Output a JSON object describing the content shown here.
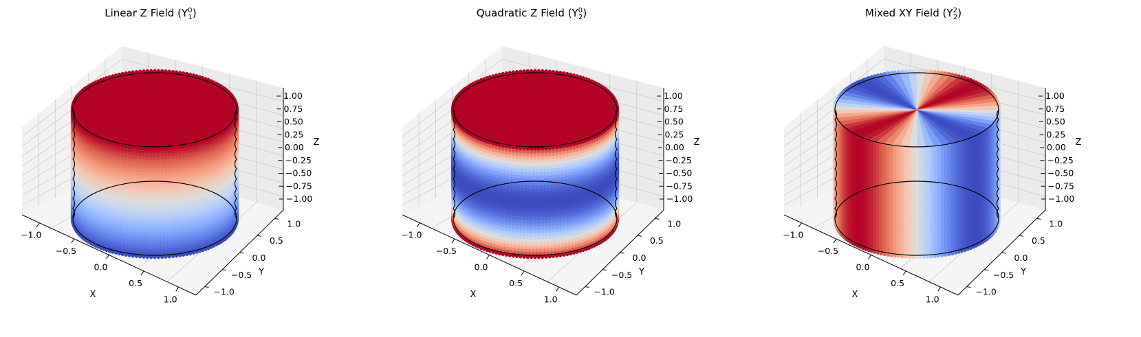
{
  "figure": {
    "colormap": "coolwarm",
    "colors": {
      "low": "#3b4cc0",
      "mid": "#dddddd",
      "high": "#b40426",
      "pane": "#f2f2f2",
      "grid": "#cccccc"
    }
  },
  "chart_data": [
    {
      "type": "scatter3d",
      "title": "Linear Z Field",
      "title_math": "(Y10)",
      "title_math_base": "(Y",
      "title_math_sub": "1",
      "title_math_sup": "0",
      "title_math_close": ")",
      "surface": "cylinder",
      "cylinder": {
        "radius": 1.0,
        "z_range": [
          -1.0,
          1.0
        ]
      },
      "field": "z",
      "color_by": "field value (coolwarm, blue = low, red = high)",
      "xlabel": "X",
      "ylabel": "Y",
      "zlabel": "Z",
      "xlim": [
        -1.2,
        1.2
      ],
      "ylim": [
        -1.2,
        1.2
      ],
      "zlim": [
        -1.1,
        1.1
      ],
      "xticks": [
        "−1.0",
        "−0.5",
        "0.0",
        "0.5",
        "1.0"
      ],
      "yticks": [
        "−1.0",
        "−0.5",
        "0.0",
        "0.5",
        "1.0"
      ],
      "zticks": [
        "−1.00",
        "−0.75",
        "−0.50",
        "−0.25",
        "0.00",
        "0.25",
        "0.50",
        "0.75",
        "1.00"
      ],
      "grid": true
    },
    {
      "type": "scatter3d",
      "title": "Quadratic Z Field",
      "title_math": "(Y20)",
      "title_math_base": "(Y",
      "title_math_sub": "2",
      "title_math_sup": "0",
      "title_math_close": ")",
      "surface": "cylinder",
      "cylinder": {
        "radius": 1.0,
        "z_range": [
          -1.0,
          1.0
        ]
      },
      "field": "3z^2 - 1",
      "color_by": "field value (coolwarm, blue = low, red = high)",
      "xlabel": "X",
      "ylabel": "Y",
      "zlabel": "Z",
      "xlim": [
        -1.2,
        1.2
      ],
      "ylim": [
        -1.2,
        1.2
      ],
      "zlim": [
        -1.1,
        1.1
      ],
      "xticks": [
        "−1.0",
        "−0.5",
        "0.0",
        "0.5",
        "1.0"
      ],
      "yticks": [
        "−1.0",
        "−0.5",
        "0.0",
        "0.5",
        "1.0"
      ],
      "zticks": [
        "−1.00",
        "−0.75",
        "−0.50",
        "−0.25",
        "0.00",
        "0.25",
        "0.50",
        "0.75",
        "1.00"
      ],
      "grid": true
    },
    {
      "type": "scatter3d",
      "title": "Mixed XY Field",
      "title_math": "(Y22)",
      "title_math_base": "(Y",
      "title_math_sub": "2",
      "title_math_sup": "2",
      "title_math_close": ")",
      "surface": "cylinder",
      "cylinder": {
        "radius": 1.0,
        "z_range": [
          -1.0,
          1.0
        ]
      },
      "field": "x^2 - y^2",
      "color_by": "field value (coolwarm, blue = low, red = high)",
      "xlabel": "X",
      "ylabel": "Y",
      "zlabel": "Z",
      "xlim": [
        -1.2,
        1.2
      ],
      "ylim": [
        -1.2,
        1.2
      ],
      "zlim": [
        -1.1,
        1.1
      ],
      "xticks": [
        "−1.0",
        "−0.5",
        "0.0",
        "0.5",
        "1.0"
      ],
      "yticks": [
        "−1.0",
        "−0.5",
        "0.0",
        "0.5",
        "1.0"
      ],
      "zticks": [
        "−1.00",
        "−0.75",
        "−0.50",
        "−0.25",
        "0.00",
        "0.25",
        "0.50",
        "0.75",
        "1.00"
      ],
      "grid": true
    }
  ]
}
